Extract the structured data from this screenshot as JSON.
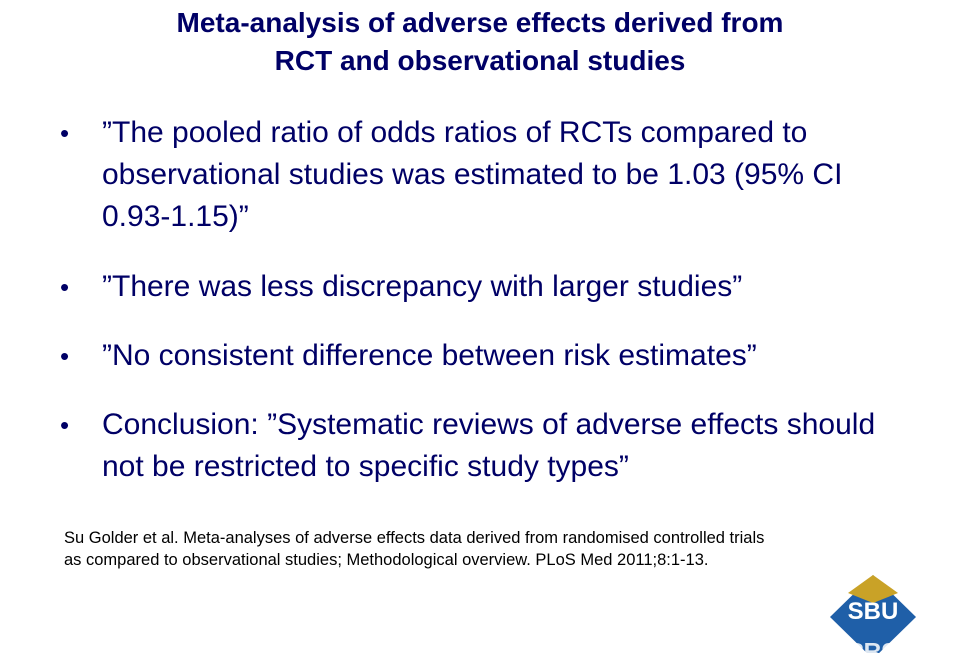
{
  "title": {
    "line1": "Meta-analysis of adverse effects derived from",
    "line2": "RCT and observational studies"
  },
  "bullets": [
    "”The pooled ratio of odds ratios of RCTs compared to observational studies was estimated to be 1.03 (95% CI 0.93-1.15)”",
    "”There was less discrepancy with larger studies”",
    "”No consistent difference between risk estimates”",
    "Conclusion: ”Systematic reviews of adverse effects should not be restricted to specific study types”"
  ],
  "reference": {
    "line1": "Su Golder et al. Meta-analyses of adverse effects data derived from randomised controlled trials",
    "line2": "as compared to observational studies; Methodological overview. PLoS Med 2011;8:1-13."
  },
  "logo": {
    "text": "SBU",
    "colors": {
      "diamond": "#1f5fa8",
      "accent": "#c9a227",
      "text": "#ffffff"
    }
  }
}
